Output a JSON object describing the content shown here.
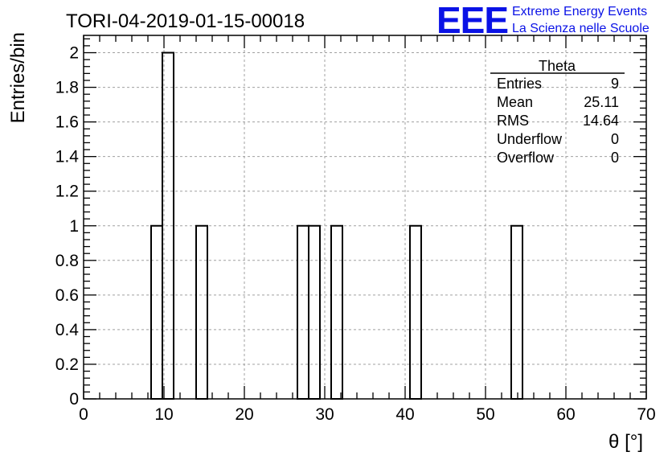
{
  "header": {
    "title": "TORI-04-2019-01-15-00018",
    "logo_text": "EEE",
    "logo_line1": "Extreme Energy Events",
    "logo_line2": "La Scienza nelle Scuole",
    "logo_color": "#0a12e6"
  },
  "stats_box": {
    "name": "Theta",
    "rows": [
      {
        "label": "Entries",
        "value": "9"
      },
      {
        "label": "Mean",
        "value": "25.11"
      },
      {
        "label": "RMS",
        "value": "14.64"
      },
      {
        "label": "Underflow",
        "value": "0"
      },
      {
        "label": "Overflow",
        "value": "0"
      }
    ]
  },
  "chart_data": {
    "type": "bar",
    "histogram": true,
    "title": "TORI-04-2019-01-15-00018",
    "xlabel": "θ [°]",
    "ylabel": "Entries/bin",
    "xlim": [
      0,
      70
    ],
    "ylim": [
      0,
      2.1
    ],
    "grid": true,
    "xticks": [
      "0",
      "10",
      "20",
      "30",
      "40",
      "50",
      "60",
      "70"
    ],
    "yticks": [
      "0",
      "0.2",
      "0.4",
      "0.6",
      "0.8",
      "1",
      "1.2",
      "1.4",
      "1.6",
      "1.8",
      "2"
    ],
    "bins": [
      {
        "x0": 8.4,
        "x1": 9.8,
        "count": 1
      },
      {
        "x0": 9.8,
        "x1": 11.2,
        "count": 2
      },
      {
        "x0": 14.0,
        "x1": 15.4,
        "count": 1
      },
      {
        "x0": 26.6,
        "x1": 28.0,
        "count": 1
      },
      {
        "x0": 28.0,
        "x1": 29.4,
        "count": 1
      },
      {
        "x0": 30.8,
        "x1": 32.2,
        "count": 1
      },
      {
        "x0": 40.6,
        "x1": 42.0,
        "count": 1
      },
      {
        "x0": 53.2,
        "x1": 54.6,
        "count": 1
      }
    ]
  }
}
